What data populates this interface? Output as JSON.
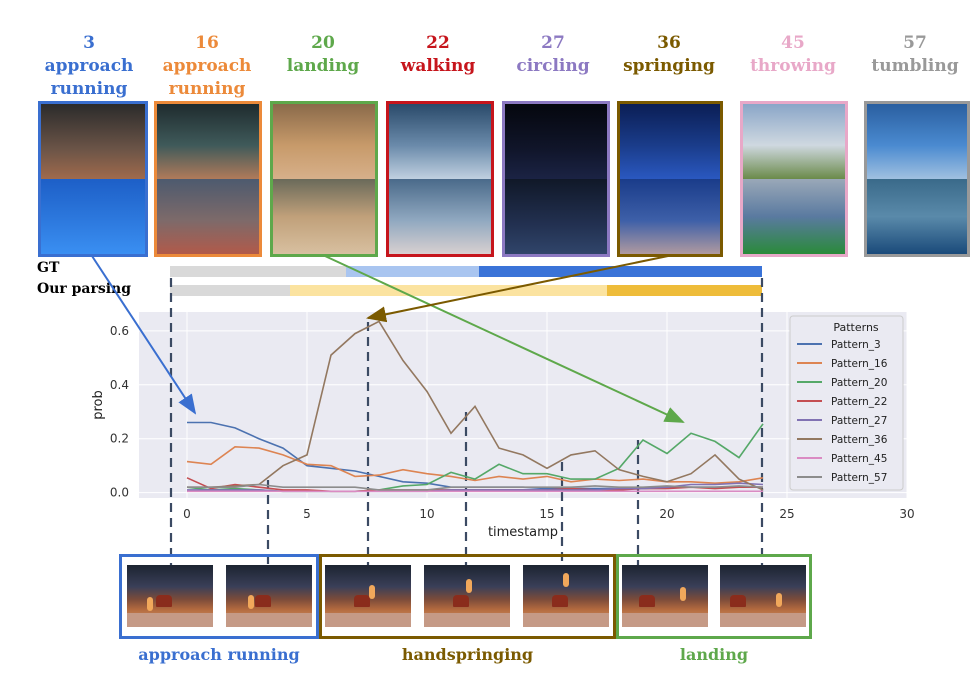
{
  "patterns_header": [
    {
      "num": "3",
      "name_line1": "approach",
      "name_line2": "running",
      "color": "#3a6fd0"
    },
    {
      "num": "16",
      "name_line1": "approach",
      "name_line2": "running",
      "color": "#ec8a3a"
    },
    {
      "num": "20",
      "name_line1": "landing",
      "name_line2": "",
      "color": "#5ea84b"
    },
    {
      "num": "22",
      "name_line1": "walking",
      "name_line2": "",
      "color": "#c6151c"
    },
    {
      "num": "27",
      "name_line1": "circling",
      "name_line2": "",
      "color": "#8c79c2"
    },
    {
      "num": "36",
      "name_line1": "springing",
      "name_line2": "",
      "color": "#7b5a00"
    },
    {
      "num": "45",
      "name_line1": "throwing",
      "name_line2": "",
      "color": "#e8a8c8"
    },
    {
      "num": "57",
      "name_line1": "tumbling",
      "name_line2": "",
      "color": "#999999"
    }
  ],
  "gt_label": "GT",
  "parsing_label": "Our parsing",
  "phases": [
    {
      "label": "approach running",
      "color": "#3a6fd0"
    },
    {
      "label": "handspringing",
      "color": "#7b5a00"
    },
    {
      "label": "landing",
      "color": "#5ea84b"
    }
  ],
  "chart_data": {
    "type": "line",
    "title": "",
    "xlabel": "timestamp",
    "ylabel": "prob",
    "xlim": [
      -2,
      30
    ],
    "ylim": [
      -0.02,
      0.67
    ],
    "xticks": [
      0,
      5,
      10,
      15,
      20,
      25,
      30
    ],
    "yticks": [
      0.0,
      0.2,
      0.4,
      0.6
    ],
    "grid": true,
    "legend_title": "Patterns",
    "legend_position": "top-right",
    "x": [
      0,
      1,
      2,
      3,
      4,
      5,
      6,
      7,
      8,
      9,
      10,
      11,
      12,
      13,
      14,
      15,
      16,
      17,
      18,
      19,
      20,
      21,
      22,
      23,
      24
    ],
    "series": [
      {
        "name": "Pattern_3",
        "color": "#4c72b0",
        "values": [
          0.26,
          0.26,
          0.24,
          0.2,
          0.165,
          0.1,
          0.09,
          0.08,
          0.06,
          0.04,
          0.035,
          0.02,
          0.02,
          0.02,
          0.02,
          0.015,
          0.015,
          0.015,
          0.015,
          0.015,
          0.02,
          0.02,
          0.02,
          0.02,
          0.02
        ]
      },
      {
        "name": "Pattern_16",
        "color": "#dd8452",
        "values": [
          0.115,
          0.105,
          0.17,
          0.165,
          0.14,
          0.105,
          0.1,
          0.06,
          0.065,
          0.085,
          0.07,
          0.06,
          0.045,
          0.06,
          0.05,
          0.06,
          0.04,
          0.05,
          0.045,
          0.05,
          0.04,
          0.04,
          0.035,
          0.04,
          0.055
        ]
      },
      {
        "name": "Pattern_20",
        "color": "#55a868",
        "values": [
          0.02,
          0.01,
          0.015,
          0.01,
          0.005,
          0.005,
          0.005,
          0.005,
          0.01,
          0.025,
          0.03,
          0.075,
          0.05,
          0.105,
          0.07,
          0.07,
          0.05,
          0.05,
          0.09,
          0.195,
          0.145,
          0.22,
          0.19,
          0.13,
          0.255
        ]
      },
      {
        "name": "Pattern_22",
        "color": "#c44e52",
        "values": [
          0.055,
          0.015,
          0.03,
          0.02,
          0.01,
          0.01,
          0.005,
          0.005,
          0.01,
          0.01,
          0.01,
          0.01,
          0.01,
          0.01,
          0.01,
          0.01,
          0.015,
          0.01,
          0.01,
          0.015,
          0.015,
          0.02,
          0.015,
          0.02,
          0.02
        ]
      },
      {
        "name": "Pattern_27",
        "color": "#8172b3",
        "values": [
          0.01,
          0.01,
          0.01,
          0.01,
          0.005,
          0.005,
          0.005,
          0.005,
          0.005,
          0.005,
          0.005,
          0.01,
          0.01,
          0.01,
          0.01,
          0.01,
          0.01,
          0.01,
          0.015,
          0.015,
          0.02,
          0.03,
          0.03,
          0.035,
          0.03
        ]
      },
      {
        "name": "Pattern_36",
        "color": "#937860",
        "values": [
          0.02,
          0.02,
          0.025,
          0.03,
          0.1,
          0.14,
          0.51,
          0.59,
          0.635,
          0.49,
          0.375,
          0.22,
          0.32,
          0.165,
          0.14,
          0.09,
          0.14,
          0.155,
          0.085,
          0.06,
          0.04,
          0.07,
          0.14,
          0.05,
          0.01
        ]
      },
      {
        "name": "Pattern_45",
        "color": "#da8bc3",
        "values": [
          0.005,
          0.005,
          0.005,
          0.005,
          0.005,
          0.005,
          0.005,
          0.005,
          0.005,
          0.005,
          0.005,
          0.005,
          0.005,
          0.005,
          0.005,
          0.005,
          0.005,
          0.005,
          0.005,
          0.005,
          0.005,
          0.005,
          0.005,
          0.005,
          0.005
        ]
      },
      {
        "name": "Pattern_57",
        "color": "#8c8c8c",
        "values": [
          0.02,
          0.02,
          0.02,
          0.03,
          0.02,
          0.02,
          0.02,
          0.02,
          0.01,
          0.01,
          0.01,
          0.02,
          0.02,
          0.02,
          0.02,
          0.02,
          0.02,
          0.025,
          0.02,
          0.02,
          0.025,
          0.02,
          0.02,
          0.025,
          0.02
        ]
      }
    ]
  }
}
